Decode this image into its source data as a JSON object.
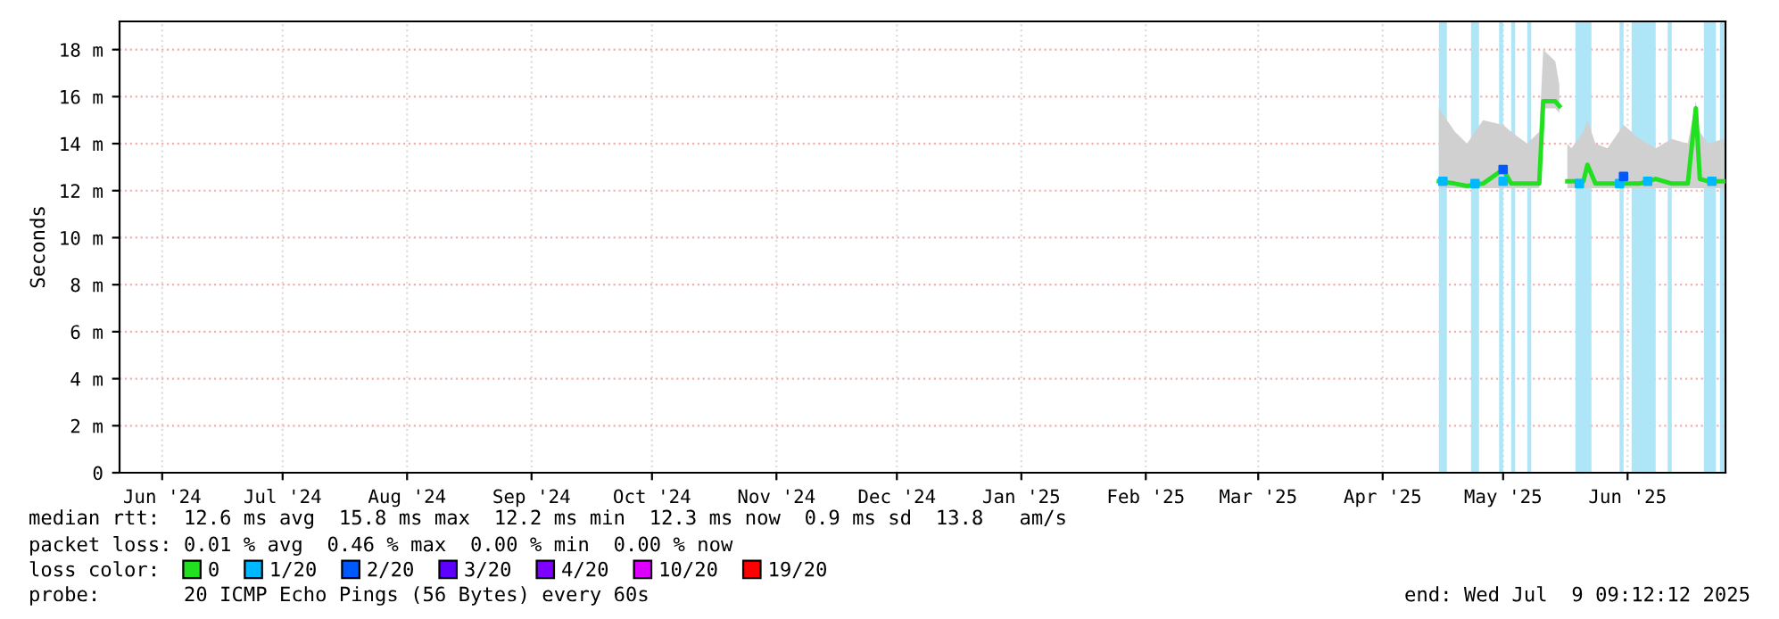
{
  "chart_data": {
    "type": "line",
    "ylabel": "Seconds",
    "xlim": [
      "2024-06-04T09:12",
      "2025-07-09T09:12"
    ],
    "xticks": [
      {
        "value": "2024-06-15",
        "label": "Jun '24"
      },
      {
        "value": "2024-07-15",
        "label": "Jul '24"
      },
      {
        "value": "2024-08-15",
        "label": "Aug '24"
      },
      {
        "value": "2024-09-15",
        "label": "Sep '24"
      },
      {
        "value": "2024-10-15",
        "label": "Oct '24"
      },
      {
        "value": "2024-11-15",
        "label": "Nov '24"
      },
      {
        "value": "2024-12-15",
        "label": "Dec '24"
      },
      {
        "value": "2025-01-15",
        "label": "Jan '25"
      },
      {
        "value": "2025-02-15",
        "label": "Feb '25"
      },
      {
        "value": "2025-03-15",
        "label": "Mar '25"
      },
      {
        "value": "2025-04-15",
        "label": "Apr '25"
      },
      {
        "value": "2025-05-15",
        "label": "May '25"
      },
      {
        "value": "2025-06-15",
        "label": "Jun '25"
      }
    ],
    "ylim": [
      0,
      19.2
    ],
    "yticks": [
      0,
      {
        "value": 2,
        "label": "2 m"
      },
      {
        "value": 4,
        "label": "4 m"
      },
      {
        "value": 6,
        "label": "6 m"
      },
      {
        "value": 8,
        "label": "8 m"
      },
      {
        "value": 10,
        "label": "10 m"
      },
      {
        "value": 12,
        "label": "12 m"
      },
      {
        "value": 14,
        "label": "14 m"
      },
      {
        "value": 16,
        "label": "16 m"
      },
      {
        "value": 18,
        "label": "18 m"
      }
    ],
    "grid": true,
    "legend": "bottom",
    "series": [
      {
        "name": "0",
        "color": "#20e020",
        "x": [
          "2025-04-29",
          "2025-05-03",
          "2025-05-06",
          "2025-05-10",
          "2025-05-15",
          "2025-05-17",
          "2025-05-21",
          "2025-05-24",
          "2025-05-25",
          "2025-05-28",
          "2025-05-29",
          "2025-05-30",
          "2025-05-31",
          "2025-06-01",
          "2025-06-04",
          "2025-06-05",
          "2025-06-07",
          "2025-06-10",
          "2025-06-14",
          "2025-06-18",
          "2025-06-22",
          "2025-06-26",
          "2025-06-30",
          "2025-07-02",
          "2025-07-03",
          "2025-07-05",
          "2025-07-09"
        ],
        "values": [
          12.4,
          12.3,
          12.2,
          12.3,
          12.9,
          12.3,
          12.3,
          12.3,
          15.8,
          15.8,
          15.6,
          null,
          12.4,
          12.4,
          12.4,
          13.1,
          12.3,
          12.3,
          12.3,
          12.3,
          12.5,
          12.3,
          12.3,
          15.5,
          12.5,
          12.4,
          12.4
        ],
        "lower": [
          12.1,
          12.1,
          12.1,
          12.1,
          12.1,
          12.1,
          12.1,
          12.1,
          15.5,
          15.5,
          15.3,
          null,
          12.1,
          12.1,
          12.1,
          12.1,
          12.1,
          12.1,
          12.1,
          12.1,
          12.1,
          12.1,
          12.1,
          12.1,
          12.1,
          12.1,
          12.1
        ],
        "upper": [
          15.5,
          14.5,
          14.0,
          15.0,
          14.8,
          14.5,
          14.0,
          14.5,
          18.0,
          17.5,
          16.5,
          null,
          14.0,
          13.8,
          14.5,
          15.0,
          14.0,
          13.8,
          14.8,
          14.2,
          13.8,
          14.2,
          14.0,
          15.8,
          14.5,
          14.0,
          14.2
        ]
      },
      {
        "name": "1/20",
        "color": "#00b8ff",
        "type": "scatter",
        "marker": "square",
        "x": [
          "2025-04-30",
          "2025-05-08",
          "2025-05-15",
          "2025-06-03",
          "2025-06-13",
          "2025-06-20",
          "2025-07-06"
        ],
        "values": [
          12.4,
          12.3,
          12.4,
          12.3,
          12.3,
          12.4,
          12.4
        ]
      },
      {
        "name": "2/20",
        "color": "#0059ff",
        "type": "scatter",
        "marker": "square",
        "x": [
          "2025-05-15",
          "2025-06-14"
        ],
        "values": [
          12.9,
          12.6
        ]
      },
      {
        "name": "3/20",
        "color": "#5e00ff",
        "type": "scatter",
        "marker": "square"
      },
      {
        "name": "4/20",
        "color": "#7e00ff",
        "type": "scatter",
        "marker": "square"
      },
      {
        "name": "10/20",
        "color": "#dd00ff",
        "type": "scatter",
        "marker": "square"
      },
      {
        "name": "19/20",
        "color": "#ff0000",
        "type": "scatter",
        "marker": "square"
      }
    ],
    "bands": [
      {
        "axis": "x",
        "from": "2025-04-29",
        "to": "2025-05-01",
        "color": "#aee6f8"
      },
      {
        "axis": "x",
        "from": "2025-05-07",
        "to": "2025-05-09",
        "color": "#aee6f8"
      },
      {
        "axis": "x",
        "from": "2025-05-14",
        "to": "2025-05-15",
        "color": "#aee6f8"
      },
      {
        "axis": "x",
        "from": "2025-05-17",
        "to": "2025-05-18",
        "color": "#aee6f8"
      },
      {
        "axis": "x",
        "from": "2025-05-21",
        "to": "2025-05-22",
        "color": "#aee6f8"
      },
      {
        "axis": "x",
        "from": "2025-06-02",
        "to": "2025-06-06",
        "color": "#aee6f8"
      },
      {
        "axis": "x",
        "from": "2025-06-13",
        "to": "2025-06-14",
        "color": "#aee6f8"
      },
      {
        "axis": "x",
        "from": "2025-06-16",
        "to": "2025-06-22",
        "color": "#aee6f8"
      },
      {
        "axis": "x",
        "from": "2025-06-25",
        "to": "2025-06-26",
        "color": "#aee6f8"
      },
      {
        "axis": "x",
        "from": "2025-07-04",
        "to": "2025-07-07",
        "color": "#aee6f8"
      },
      {
        "axis": "x",
        "from": "2025-07-08",
        "to": "2025-07-09",
        "color": "#aee6f8"
      }
    ],
    "annotations": [
      "median rtt:  12.6 ms avg  15.8 ms max  12.2 ms min  12.3 ms now  0.9 ms sd  13.8   am/s",
      "packet loss: 0.01 % avg  0.46 % max  0.00 % min  0.00 % now",
      "loss color:",
      "probe:       20 ICMP Echo Pings (56 Bytes) every 60s",
      "end: Wed Jul  9 09:12:12 2025"
    ]
  }
}
